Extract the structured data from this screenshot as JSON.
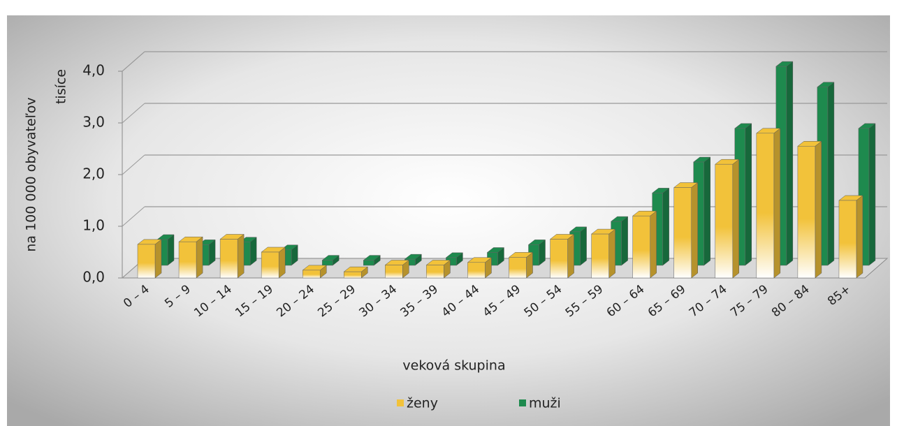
{
  "chart_data": {
    "type": "bar3d",
    "y_label": "na 100 000 obyvateľov",
    "y_unit": "tisíce",
    "x_label": "veková skupina",
    "categories": [
      "0 – 4",
      "5 – 9",
      "10 – 14",
      "15 – 19",
      "20 – 24",
      "25 – 29",
      "30 – 34",
      "35 – 39",
      "40 – 44",
      "45 – 49",
      "50 – 54",
      "55 – 59",
      "60 – 64",
      "65 – 69",
      "70 – 74",
      "75 – 79",
      "80 – 84",
      "85+"
    ],
    "series": [
      {
        "name": "ženy",
        "color": "#f2c23a",
        "values": [
          0.65,
          0.7,
          0.75,
          0.5,
          0.15,
          0.12,
          0.25,
          0.25,
          0.3,
          0.4,
          0.75,
          0.85,
          1.2,
          1.75,
          2.2,
          2.8,
          2.55,
          1.5
        ]
      },
      {
        "name": "muži",
        "color": "#1e8a4e",
        "values": [
          0.5,
          0.4,
          0.45,
          0.3,
          0.1,
          0.1,
          0.12,
          0.15,
          0.25,
          0.4,
          0.65,
          0.85,
          1.4,
          2.0,
          2.65,
          3.85,
          3.45,
          2.65
        ]
      }
    ],
    "ylim": [
      0,
      4
    ],
    "yticks": [
      {
        "value": 0,
        "label": "0,0"
      },
      {
        "value": 1,
        "label": "1,0"
      },
      {
        "value": 2,
        "label": "2,0"
      },
      {
        "value": 3,
        "label": "3,0"
      },
      {
        "value": 4,
        "label": "4,0"
      }
    ],
    "grid": true
  }
}
